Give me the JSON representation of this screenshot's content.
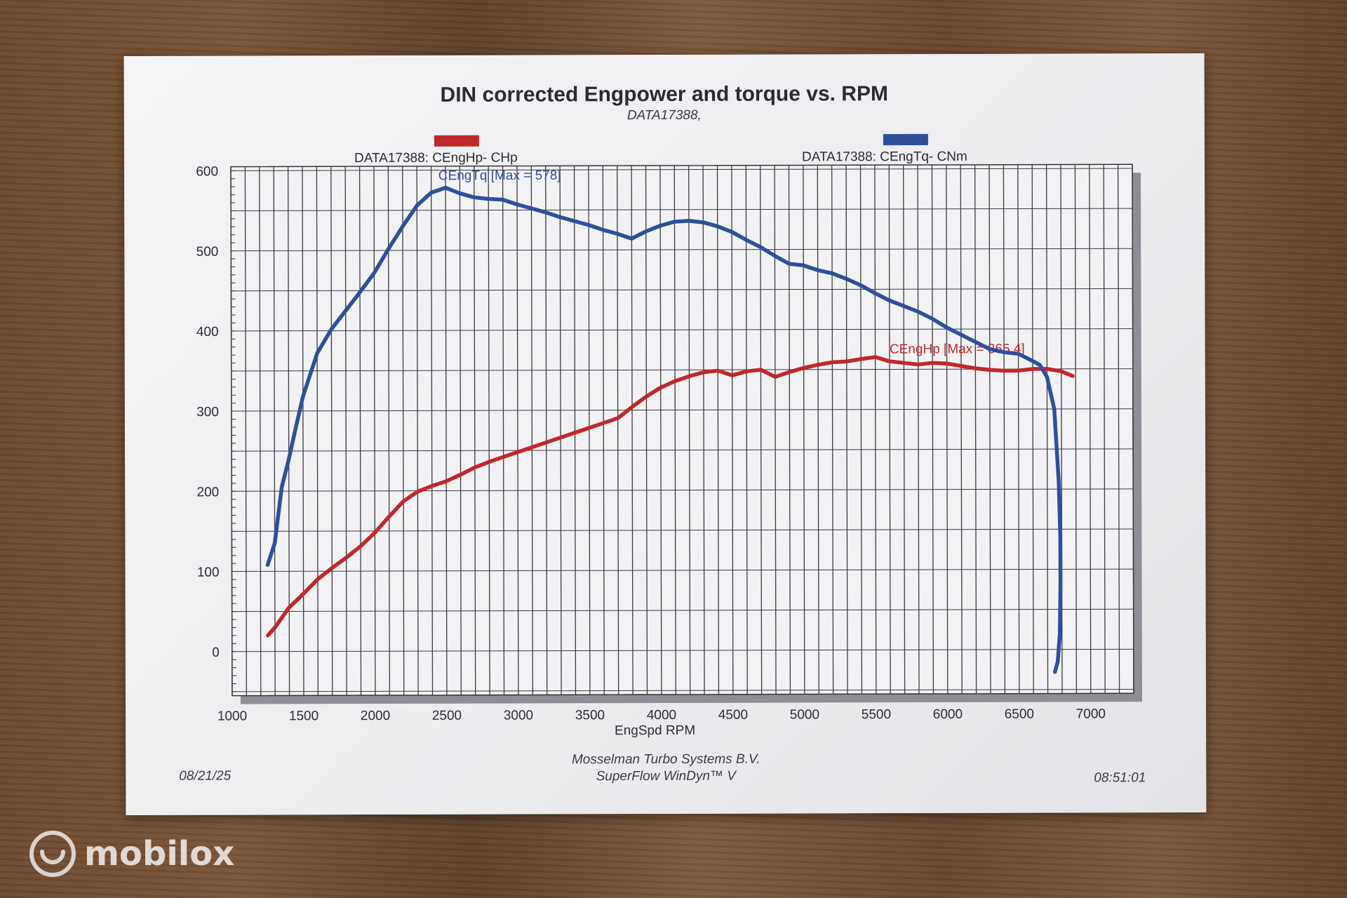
{
  "watermark": {
    "brand": "mobilox"
  },
  "chart_data": {
    "type": "line",
    "title": "DIN corrected Engpower and torque vs. RPM",
    "subtitle": "DATA17388,",
    "xlabel": "EngSpd  RPM",
    "ylabel": "",
    "xlim": [
      1000,
      7300
    ],
    "ylim": [
      -55,
      605
    ],
    "x_ticks": [
      1000,
      1500,
      2000,
      2500,
      3000,
      3500,
      4000,
      4500,
      5000,
      5500,
      6000,
      6500,
      7000
    ],
    "y_ticks": [
      0,
      100,
      200,
      300,
      400,
      500,
      600
    ],
    "grid": true,
    "legend_position": "top",
    "series": [
      {
        "name": "DATA17388: CEngHp-  CHp",
        "color": "#c0282c",
        "annotation": "CEngHp [Max = 365.4]",
        "annotation_at": [
          5600,
          370
        ],
        "points": [
          [
            1250,
            20
          ],
          [
            1300,
            30
          ],
          [
            1400,
            55
          ],
          [
            1500,
            72
          ],
          [
            1600,
            90
          ],
          [
            1700,
            104
          ],
          [
            1800,
            117
          ],
          [
            1900,
            131
          ],
          [
            2000,
            148
          ],
          [
            2100,
            168
          ],
          [
            2200,
            187
          ],
          [
            2300,
            199
          ],
          [
            2400,
            206
          ],
          [
            2500,
            212
          ],
          [
            2600,
            220
          ],
          [
            2700,
            229
          ],
          [
            2800,
            236
          ],
          [
            2900,
            242
          ],
          [
            3000,
            248
          ],
          [
            3100,
            254
          ],
          [
            3200,
            260
          ],
          [
            3300,
            266
          ],
          [
            3400,
            272
          ],
          [
            3500,
            278
          ],
          [
            3600,
            284
          ],
          [
            3700,
            290
          ],
          [
            3800,
            304
          ],
          [
            3900,
            317
          ],
          [
            4000,
            328
          ],
          [
            4100,
            336
          ],
          [
            4200,
            342
          ],
          [
            4300,
            347
          ],
          [
            4400,
            349
          ],
          [
            4500,
            343
          ],
          [
            4600,
            348
          ],
          [
            4700,
            350
          ],
          [
            4800,
            341
          ],
          [
            4900,
            347
          ],
          [
            5000,
            352
          ],
          [
            5100,
            356
          ],
          [
            5200,
            359
          ],
          [
            5300,
            360
          ],
          [
            5400,
            363
          ],
          [
            5500,
            365.4
          ],
          [
            5600,
            360
          ],
          [
            5700,
            358
          ],
          [
            5800,
            356
          ],
          [
            5900,
            358
          ],
          [
            6000,
            357
          ],
          [
            6100,
            354
          ],
          [
            6200,
            351
          ],
          [
            6300,
            349
          ],
          [
            6400,
            348
          ],
          [
            6500,
            348
          ],
          [
            6600,
            350
          ],
          [
            6700,
            350
          ],
          [
            6800,
            347
          ],
          [
            6880,
            341
          ]
        ]
      },
      {
        "name": "DATA17388: CEngTq-  CNm",
        "color": "#2f4f9a",
        "annotation": "CEngTq [Max = 578]",
        "annotation_at": [
          2450,
          588
        ],
        "points": [
          [
            1250,
            108
          ],
          [
            1300,
            135
          ],
          [
            1350,
            205
          ],
          [
            1400,
            240
          ],
          [
            1450,
            280
          ],
          [
            1500,
            318
          ],
          [
            1550,
            345
          ],
          [
            1600,
            372
          ],
          [
            1700,
            402
          ],
          [
            1800,
            425
          ],
          [
            1900,
            448
          ],
          [
            2000,
            472
          ],
          [
            2100,
            502
          ],
          [
            2200,
            530
          ],
          [
            2300,
            556
          ],
          [
            2400,
            572
          ],
          [
            2500,
            578
          ],
          [
            2600,
            571
          ],
          [
            2700,
            566
          ],
          [
            2800,
            564
          ],
          [
            2900,
            563
          ],
          [
            3000,
            557
          ],
          [
            3100,
            552
          ],
          [
            3200,
            547
          ],
          [
            3300,
            541
          ],
          [
            3400,
            536
          ],
          [
            3500,
            531
          ],
          [
            3600,
            525
          ],
          [
            3700,
            520
          ],
          [
            3800,
            514
          ],
          [
            3900,
            523
          ],
          [
            4000,
            530
          ],
          [
            4100,
            535
          ],
          [
            4200,
            536
          ],
          [
            4300,
            534
          ],
          [
            4400,
            529
          ],
          [
            4500,
            522
          ],
          [
            4600,
            512
          ],
          [
            4700,
            503
          ],
          [
            4800,
            492
          ],
          [
            4900,
            482
          ],
          [
            5000,
            480
          ],
          [
            5100,
            474
          ],
          [
            5200,
            470
          ],
          [
            5300,
            463
          ],
          [
            5400,
            455
          ],
          [
            5500,
            445
          ],
          [
            5600,
            436
          ],
          [
            5700,
            429
          ],
          [
            5800,
            422
          ],
          [
            5900,
            413
          ],
          [
            6000,
            402
          ],
          [
            6100,
            393
          ],
          [
            6200,
            384
          ],
          [
            6300,
            375
          ],
          [
            6400,
            371
          ],
          [
            6500,
            369
          ],
          [
            6600,
            360
          ],
          [
            6650,
            355
          ],
          [
            6700,
            340
          ],
          [
            6750,
            300
          ],
          [
            6780,
            210
          ],
          [
            6790,
            140
          ],
          [
            6790,
            80
          ],
          [
            6785,
            20
          ],
          [
            6770,
            -15
          ],
          [
            6750,
            -28
          ]
        ]
      }
    ]
  },
  "footer": {
    "date": "08/21/25",
    "company": "Mosselman Turbo Systems B.V.",
    "software": "SuperFlow WinDyn™ V",
    "time": "08:51:01"
  }
}
